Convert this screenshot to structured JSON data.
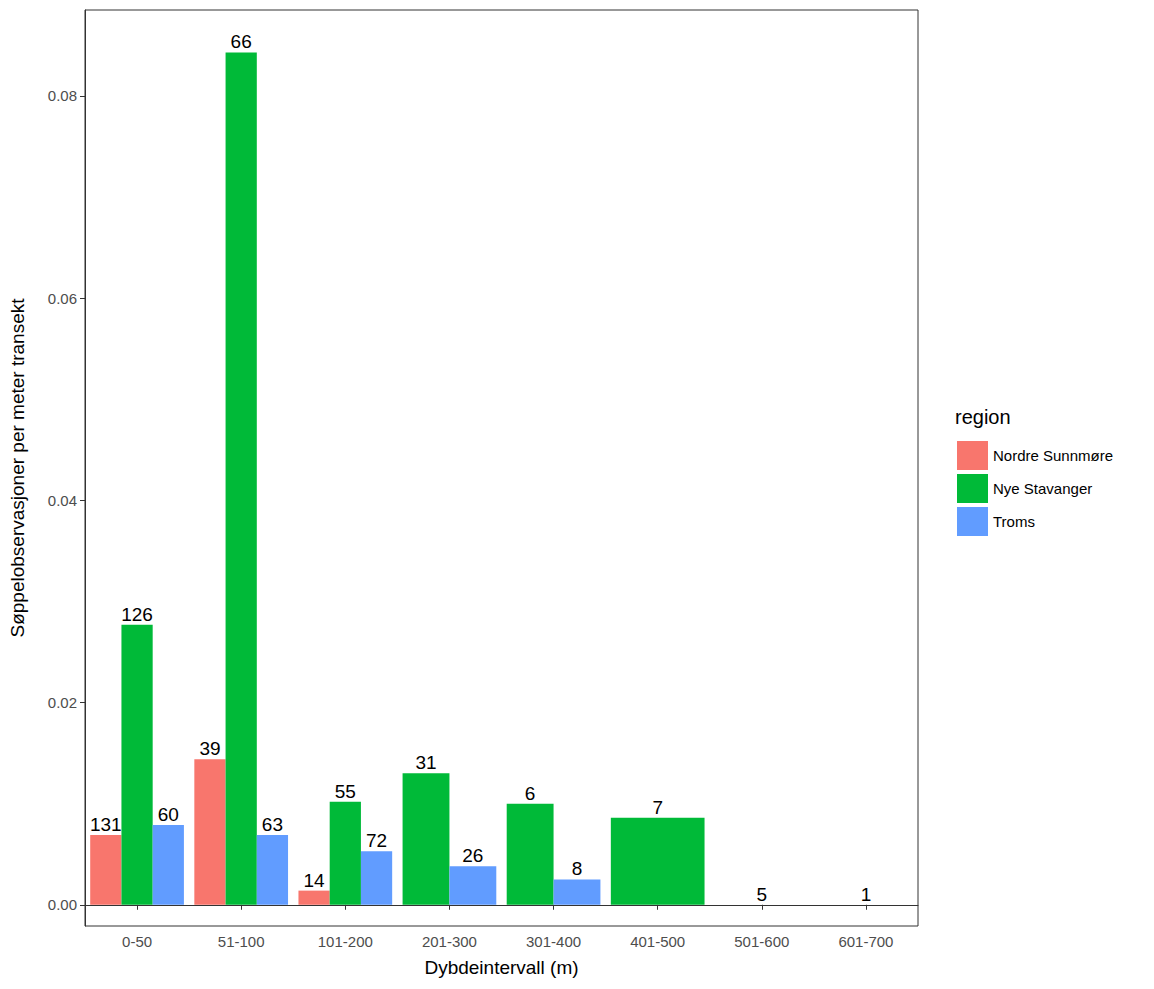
{
  "chart_data": {
    "type": "bar",
    "x_label": "Dybdeintervall (m)",
    "y_label": "Søppelobservasjoner per meter transekt",
    "legend_title": "region",
    "legend": "right",
    "grid": false,
    "data_labels": true,
    "categories": [
      "0-50",
      "51-100",
      "101-200",
      "201-300",
      "301-400",
      "401-500",
      "501-600",
      "601-700"
    ],
    "series": [
      {
        "name": "Nordre Sunnmøre",
        "color": "#F8766D",
        "values": [
          0.0069,
          0.0144,
          0.0014,
          null,
          null,
          null,
          null,
          null
        ],
        "counts": [
          131,
          39,
          14,
          null,
          null,
          null,
          null,
          null
        ]
      },
      {
        "name": "Nye Stavanger",
        "color": "#00BA38",
        "values": [
          0.0277,
          0.0843,
          0.0102,
          0.013,
          0.01,
          0.0086,
          0,
          0
        ],
        "counts": [
          126,
          66,
          55,
          31,
          6,
          7,
          5,
          1
        ]
      },
      {
        "name": "Troms",
        "color": "#619CFF",
        "values": [
          0.0079,
          0.0069,
          0.0053,
          0.0038,
          0.0025,
          null,
          null,
          null
        ],
        "counts": [
          60,
          63,
          72,
          26,
          8,
          null,
          null,
          null
        ]
      }
    ],
    "ylim": [
      -0.0021,
      0.0885
    ],
    "yticks": [
      {
        "value": 0,
        "label": "0.00"
      },
      {
        "value": 0.02,
        "label": "0.02"
      },
      {
        "value": 0.04,
        "label": "0.04"
      },
      {
        "value": 0.06,
        "label": "0.06"
      },
      {
        "value": 0.08,
        "label": "0.08"
      }
    ]
  }
}
